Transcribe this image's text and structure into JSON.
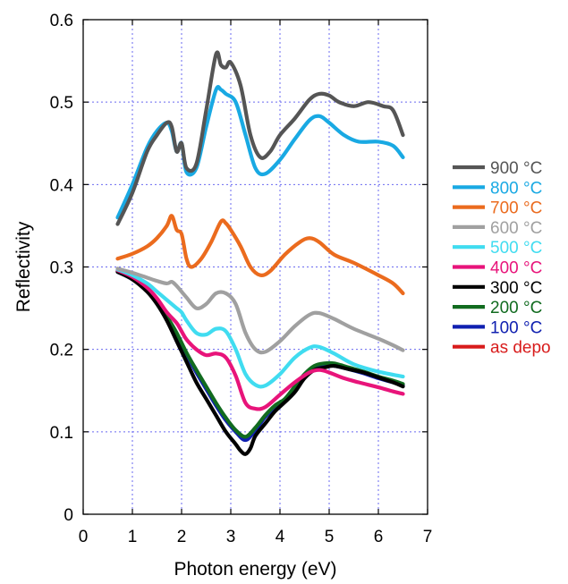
{
  "chart_data": {
    "type": "line",
    "xlabel": "Photon energy (eV)",
    "ylabel": "Reflectivity",
    "xlim": [
      0,
      7
    ],
    "ylim": [
      0,
      0.6
    ],
    "x_ticks": [
      "0",
      "1",
      "2",
      "3",
      "4",
      "5",
      "6",
      "7"
    ],
    "y_ticks": [
      "0",
      "0.1",
      "0.2",
      "0.3",
      "0.4",
      "0.5",
      "0.6"
    ],
    "grid": true,
    "legend_position": "right",
    "series": [
      {
        "name": "900 °C",
        "color": "#555555",
        "x": [
          0.7,
          1.0,
          1.3,
          1.5,
          1.7,
          1.8,
          1.9,
          2.0,
          2.1,
          2.3,
          2.5,
          2.7,
          2.8,
          2.9,
          3.0,
          3.2,
          3.4,
          3.6,
          3.8,
          4.0,
          4.3,
          4.6,
          4.8,
          5.0,
          5.2,
          5.5,
          5.8,
          6.1,
          6.3,
          6.5
        ],
        "y": [
          0.352,
          0.39,
          0.44,
          0.46,
          0.475,
          0.47,
          0.44,
          0.45,
          0.42,
          0.425,
          0.49,
          0.558,
          0.545,
          0.542,
          0.548,
          0.52,
          0.46,
          0.433,
          0.44,
          0.46,
          0.48,
          0.503,
          0.51,
          0.508,
          0.5,
          0.495,
          0.5,
          0.495,
          0.49,
          0.46
        ]
      },
      {
        "name": "800 °C",
        "color": "#19a9e3",
        "x": [
          0.7,
          1.0,
          1.3,
          1.5,
          1.7,
          1.8,
          1.9,
          2.0,
          2.1,
          2.3,
          2.5,
          2.7,
          2.8,
          2.9,
          3.1,
          3.3,
          3.5,
          3.7,
          4.0,
          4.3,
          4.6,
          4.8,
          5.0,
          5.3,
          5.6,
          6.0,
          6.3,
          6.5
        ],
        "y": [
          0.36,
          0.4,
          0.445,
          0.465,
          0.475,
          0.465,
          0.44,
          0.45,
          0.415,
          0.42,
          0.47,
          0.515,
          0.515,
          0.51,
          0.5,
          0.46,
          0.42,
          0.413,
          0.43,
          0.455,
          0.478,
          0.483,
          0.475,
          0.46,
          0.452,
          0.452,
          0.447,
          0.433
        ]
      },
      {
        "name": "700 °C",
        "color": "#eb6b1e",
        "x": [
          0.7,
          1.0,
          1.3,
          1.5,
          1.7,
          1.8,
          1.9,
          2.0,
          2.1,
          2.2,
          2.4,
          2.6,
          2.8,
          2.9,
          3.0,
          3.2,
          3.4,
          3.6,
          3.8,
          4.1,
          4.4,
          4.6,
          4.8,
          5.1,
          5.5,
          6.0,
          6.3,
          6.5
        ],
        "y": [
          0.31,
          0.316,
          0.325,
          0.335,
          0.35,
          0.362,
          0.345,
          0.34,
          0.31,
          0.3,
          0.31,
          0.33,
          0.355,
          0.353,
          0.345,
          0.325,
          0.3,
          0.29,
          0.295,
          0.315,
          0.33,
          0.335,
          0.33,
          0.315,
          0.305,
          0.29,
          0.28,
          0.268
        ]
      },
      {
        "name": "600 °C",
        "color": "#a0a0a0",
        "x": [
          0.7,
          1.0,
          1.3,
          1.5,
          1.7,
          1.8,
          1.9,
          2.0,
          2.1,
          2.3,
          2.5,
          2.7,
          2.9,
          3.1,
          3.3,
          3.5,
          3.7,
          4.0,
          4.3,
          4.6,
          4.8,
          5.1,
          5.5,
          6.0,
          6.3,
          6.5
        ],
        "y": [
          0.298,
          0.293,
          0.287,
          0.283,
          0.28,
          0.282,
          0.277,
          0.27,
          0.263,
          0.25,
          0.255,
          0.268,
          0.268,
          0.255,
          0.22,
          0.2,
          0.197,
          0.21,
          0.228,
          0.242,
          0.244,
          0.237,
          0.225,
          0.213,
          0.205,
          0.199
        ]
      },
      {
        "name": "500 °C",
        "color": "#40dcf0",
        "x": [
          0.7,
          1.0,
          1.3,
          1.5,
          1.7,
          1.8,
          1.9,
          2.0,
          2.1,
          2.3,
          2.5,
          2.7,
          2.9,
          3.1,
          3.3,
          3.5,
          3.7,
          4.0,
          4.3,
          4.6,
          4.8,
          5.1,
          5.5,
          6.0,
          6.5
        ],
        "y": [
          0.297,
          0.29,
          0.28,
          0.27,
          0.26,
          0.255,
          0.25,
          0.245,
          0.235,
          0.22,
          0.218,
          0.225,
          0.222,
          0.2,
          0.17,
          0.157,
          0.156,
          0.17,
          0.19,
          0.202,
          0.203,
          0.195,
          0.182,
          0.173,
          0.167
        ]
      },
      {
        "name": "400 °C",
        "color": "#e8147a",
        "x": [
          0.7,
          1.0,
          1.3,
          1.5,
          1.7,
          1.9,
          2.0,
          2.1,
          2.3,
          2.5,
          2.7,
          2.9,
          3.1,
          3.3,
          3.5,
          3.7,
          4.0,
          4.3,
          4.6,
          4.8,
          5.0,
          5.3,
          5.6,
          6.0,
          6.3,
          6.5
        ],
        "y": [
          0.296,
          0.288,
          0.275,
          0.262,
          0.245,
          0.232,
          0.222,
          0.212,
          0.2,
          0.193,
          0.195,
          0.19,
          0.168,
          0.135,
          0.128,
          0.13,
          0.145,
          0.16,
          0.172,
          0.175,
          0.172,
          0.165,
          0.16,
          0.154,
          0.149,
          0.146
        ]
      },
      {
        "name": "300 °C",
        "color": "#000000",
        "x": [
          0.7,
          1.0,
          1.3,
          1.5,
          1.7,
          1.9,
          2.1,
          2.3,
          2.5,
          2.7,
          2.9,
          3.1,
          3.2,
          3.3,
          3.4,
          3.5,
          3.7,
          3.9,
          4.1,
          4.3,
          4.5,
          4.7,
          4.9,
          5.1,
          5.4,
          5.7,
          6.0,
          6.3,
          6.5
        ],
        "y": [
          0.294,
          0.285,
          0.27,
          0.255,
          0.235,
          0.21,
          0.185,
          0.16,
          0.14,
          0.12,
          0.1,
          0.085,
          0.077,
          0.073,
          0.08,
          0.095,
          0.11,
          0.125,
          0.136,
          0.148,
          0.165,
          0.175,
          0.178,
          0.18,
          0.176,
          0.172,
          0.166,
          0.16,
          0.155
        ]
      },
      {
        "name": "200 °C",
        "color": "#116b1f",
        "x": [
          0.7,
          1.0,
          1.3,
          1.5,
          1.7,
          1.9,
          2.1,
          2.3,
          2.5,
          2.7,
          2.9,
          3.1,
          3.3,
          3.5,
          3.7,
          3.9,
          4.1,
          4.3,
          4.5,
          4.7,
          4.9,
          5.1,
          5.4,
          5.7,
          6.0,
          6.3,
          6.5
        ],
        "y": [
          0.295,
          0.286,
          0.272,
          0.258,
          0.24,
          0.22,
          0.196,
          0.175,
          0.155,
          0.135,
          0.117,
          0.102,
          0.094,
          0.105,
          0.12,
          0.132,
          0.14,
          0.155,
          0.17,
          0.18,
          0.183,
          0.183,
          0.178,
          0.173,
          0.167,
          0.162,
          0.158
        ]
      },
      {
        "name": "100 °C",
        "color": "#1020b0",
        "x": [
          0.7,
          1.0,
          1.3,
          1.5,
          1.7,
          1.9,
          2.1,
          2.3,
          2.5,
          2.7,
          2.9,
          3.1,
          3.3,
          3.5,
          3.7,
          3.9,
          4.1,
          4.3,
          4.5,
          4.7,
          4.9,
          5.1,
          5.4,
          5.7,
          6.0,
          6.3,
          6.5
        ],
        "y": [
          0.294,
          0.285,
          0.271,
          0.256,
          0.238,
          0.218,
          0.194,
          0.172,
          0.152,
          0.132,
          0.114,
          0.1,
          0.09,
          0.102,
          0.118,
          0.13,
          0.138,
          0.152,
          0.167,
          0.177,
          0.18,
          0.18,
          0.176,
          0.171,
          0.165,
          0.16,
          0.156
        ]
      },
      {
        "name": "as depo",
        "color": "#d81c1c",
        "x": [
          0.7,
          1.0,
          1.3,
          1.5,
          1.7,
          1.9,
          2.1,
          2.3,
          2.5,
          2.7,
          2.9,
          3.1,
          3.3,
          3.5,
          3.7,
          3.9,
          4.1,
          4.3,
          4.5,
          4.7,
          4.9,
          5.1,
          5.4,
          5.7,
          6.0,
          6.3,
          6.5
        ],
        "y": [
          0.295,
          0.286,
          0.272,
          0.257,
          0.239,
          0.219,
          0.195,
          0.173,
          0.153,
          0.133,
          0.115,
          0.101,
          0.092,
          0.103,
          0.119,
          0.131,
          0.139,
          0.153,
          0.168,
          0.178,
          0.181,
          0.181,
          0.177,
          0.172,
          0.166,
          0.161,
          0.157
        ]
      }
    ]
  }
}
